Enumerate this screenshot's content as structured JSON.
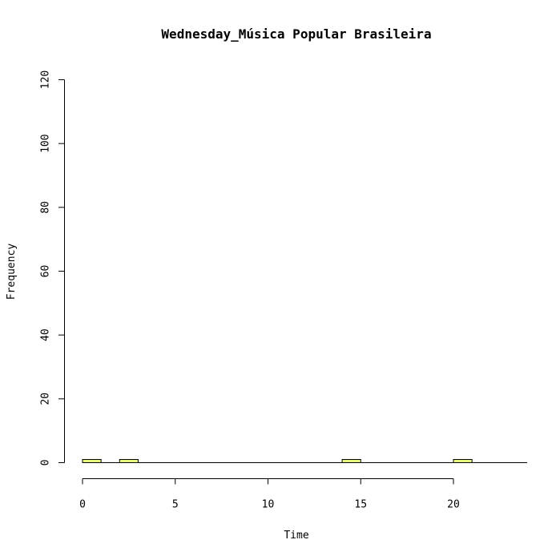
{
  "chart_data": {
    "type": "bar",
    "title": "Wednesday_Música Popular Brasileira",
    "xlabel": "Time",
    "ylabel": "Frequency",
    "xlim": [
      0,
      24
    ],
    "ylim": [
      0,
      120
    ],
    "x_ticks": [
      0,
      5,
      10,
      15,
      20
    ],
    "y_ticks": [
      0,
      20,
      40,
      60,
      80,
      100,
      120
    ],
    "bins": [
      {
        "start": 0,
        "end": 1,
        "value": 1
      },
      {
        "start": 2,
        "end": 3,
        "value": 1
      },
      {
        "start": 14,
        "end": 15,
        "value": 1
      },
      {
        "start": 20,
        "end": 21,
        "value": 1
      }
    ],
    "bar_color": "#E6FF80",
    "grid": false
  }
}
